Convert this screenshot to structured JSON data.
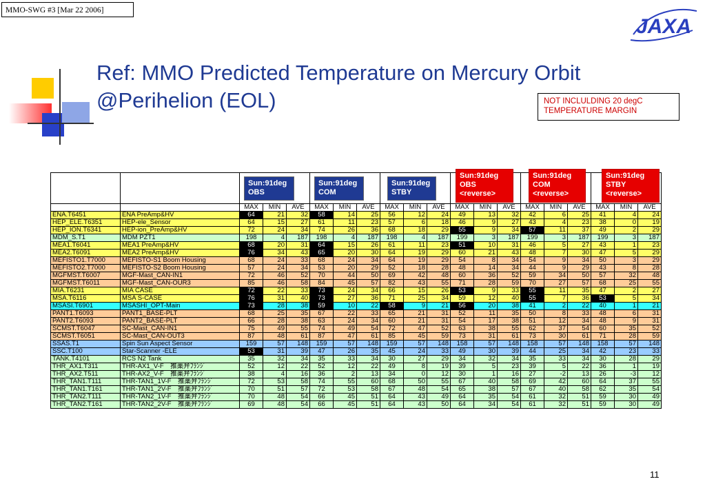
{
  "header": {
    "meeting": "MMO-SWG #3    [Mar 22 2006]"
  },
  "logo": {
    "text": "JAXA"
  },
  "title": {
    "line1": "Ref: MMO Predicted Temperature on Mercury Orbit",
    "line2": "@Perihelion (EOL)"
  },
  "note": {
    "line1": "NOT INCLULDING 20 degC",
    "line2": "TEMPERATURE MARGIN"
  },
  "labels": {
    "obs": [
      "Sun:91deg",
      "OBS"
    ],
    "com": [
      "Sun:91deg",
      "COM"
    ],
    "stby": [
      "Sun:91deg",
      "STBY"
    ],
    "obs_rev": [
      "Sun:91deg",
      "OBS",
      "<reverse>"
    ],
    "com_rev": [
      "Sun:91deg",
      "COM",
      "<reverse>"
    ],
    "stby_rev": [
      "Sun:91deg",
      "STBY",
      "<reverse>"
    ]
  },
  "subheaders": [
    "MAX",
    "MIN",
    "AVE",
    "MAX",
    "MIN",
    "AVE",
    "MAX",
    "MIN",
    "AVE",
    "MAX",
    "MIN",
    "AVE",
    "MAX",
    "MIN",
    "AVE",
    "MAX",
    "MIN",
    "AVE"
  ],
  "rows": [
    {
      "id": "ENA.T6451",
      "name": "ENA PreAmp&HV",
      "color": "y",
      "vals": [
        64,
        21,
        32,
        58,
        14,
        25,
        56,
        12,
        24,
        49,
        13,
        32,
        42,
        6,
        25,
        41,
        4,
        24
      ],
      "inv": [
        0,
        3
      ]
    },
    {
      "id": "HEP_ELE.T6351",
      "name": "HEP-ele_Sensor",
      "color": "y",
      "vals": [
        64,
        15,
        27,
        61,
        11,
        23,
        57,
        6,
        18,
        46,
        9,
        27,
        43,
        4,
        23,
        38,
        0,
        19
      ],
      "inv": []
    },
    {
      "id": "HEP_ION.T6341",
      "name": "HEP-ion_PreAmp&HV",
      "color": "y",
      "vals": [
        72,
        24,
        34,
        74,
        26,
        36,
        68,
        18,
        29,
        55,
        9,
        34,
        57,
        11,
        37,
        49,
        2,
        29
      ],
      "inv": [
        9,
        12
      ]
    },
    {
      "id": "MDM_S.T1",
      "name": "MDM PZT1",
      "color": "g",
      "vals": [
        198,
        4,
        187,
        198,
        4,
        187,
        198,
        4,
        187,
        199,
        3,
        187,
        199,
        3,
        187,
        199,
        3,
        187
      ],
      "inv": []
    },
    {
      "id": "MEA1.T6041",
      "name": "MEA1 PreAmp&HV",
      "color": "y",
      "vals": [
        68,
        20,
        31,
        64,
        15,
        26,
        61,
        11,
        23,
        51,
        10,
        31,
        46,
        5,
        27,
        43,
        1,
        23
      ],
      "inv": [
        0,
        3,
        9
      ]
    },
    {
      "id": "MEA2.T6091",
      "name": "MEA2 PreAmp&HV",
      "color": "y",
      "vals": [
        76,
        34,
        43,
        65,
        20,
        30,
        64,
        19,
        29,
        60,
        21,
        43,
        48,
        7,
        30,
        47,
        5,
        29
      ],
      "inv": [
        0,
        3
      ]
    },
    {
      "id": "MEFISTO1.T7000",
      "name": "MEFISTO-S1 Boom Housing",
      "color": "o",
      "vals": [
        68,
        24,
        33,
        68,
        24,
        34,
        64,
        19,
        29,
        54,
        8,
        34,
        54,
        9,
        34,
        50,
        3,
        29
      ],
      "inv": []
    },
    {
      "id": "MEFISTO2.T7000",
      "name": "MEFISTO-S2 Boom Housing",
      "color": "o",
      "vals": [
        57,
        24,
        34,
        53,
        20,
        29,
        52,
        18,
        28,
        48,
        14,
        34,
        44,
        9,
        29,
        43,
        8,
        28
      ],
      "inv": []
    },
    {
      "id": "MGFMST.T6007",
      "name": "MGF-Mast_CAN-IN1",
      "color": "o",
      "vals": [
        72,
        46,
        52,
        70,
        44,
        50,
        69,
        42,
        48,
        60,
        36,
        52,
        59,
        34,
        50,
        57,
        32,
        48
      ],
      "inv": []
    },
    {
      "id": "MGFMST.T6011",
      "name": "MGF-Mast_CAN-OUR3",
      "color": "o",
      "vals": [
        85,
        46,
        58,
        84,
        45,
        57,
        82,
        43,
        55,
        71,
        28,
        59,
        70,
        27,
        57,
        68,
        25,
        55
      ],
      "inv": []
    },
    {
      "id": "MIA.T6231",
      "name": "MIA CASE",
      "color": "y",
      "vals": [
        72,
        22,
        33,
        73,
        24,
        34,
        66,
        15,
        26,
        53,
        9,
        33,
        55,
        11,
        35,
        47,
        2,
        27
      ],
      "inv": [
        0,
        3,
        9,
        12
      ]
    },
    {
      "id": "MSA.T6116",
      "name": "MSA S-CASE",
      "color": "y",
      "vals": [
        76,
        31,
        40,
        73,
        27,
        36,
        71,
        25,
        34,
        59,
        12,
        40,
        55,
        7,
        36,
        53,
        5,
        34
      ],
      "inv": [
        0,
        3,
        12,
        15
      ]
    },
    {
      "id": "MSASI.T6901",
      "name": "MSASHI_OPT-Main",
      "color": "c",
      "vals": [
        73,
        28,
        38,
        59,
        10,
        22,
        58,
        9,
        21,
        56,
        20,
        38,
        41,
        2,
        22,
        40,
        1,
        21
      ],
      "inv": [
        0,
        3,
        6,
        9
      ]
    },
    {
      "id": "PANT1.T6093",
      "name": "PANT1_BASE-PLT",
      "color": "o",
      "vals": [
        68,
        25,
        35,
        67,
        22,
        33,
        65,
        21,
        31,
        52,
        11,
        35,
        50,
        8,
        33,
        48,
        6,
        31
      ],
      "inv": []
    },
    {
      "id": "PANT2.T6093",
      "name": "PANT2_BASE-PLT",
      "color": "o",
      "vals": [
        66,
        28,
        38,
        63,
        24,
        34,
        60,
        21,
        31,
        54,
        17,
        38,
        51,
        12,
        34,
        48,
        9,
        31
      ],
      "inv": []
    },
    {
      "id": "SCMST.T6047",
      "name": "SC-Mast_CAN-IN1",
      "color": "o",
      "vals": [
        75,
        49,
        55,
        74,
        49,
        54,
        72,
        47,
        52,
        63,
        38,
        55,
        62,
        37,
        54,
        60,
        35,
        52
      ],
      "inv": []
    },
    {
      "id": "SCMST.T6051",
      "name": "SC-Mast_CAN-OUT3",
      "color": "o",
      "vals": [
        87,
        48,
        61,
        87,
        47,
        61,
        85,
        45,
        59,
        73,
        31,
        61,
        73,
        30,
        61,
        71,
        28,
        59
      ],
      "inv": []
    },
    {
      "id": "SSAS.T1",
      "name": "Spin Sun Aspect Sensor",
      "color": "b",
      "vals": [
        159,
        57,
        148,
        159,
        57,
        148,
        159,
        57,
        148,
        158,
        57,
        148,
        158,
        57,
        148,
        158,
        57,
        148
      ],
      "inv": []
    },
    {
      "id": "SSC.T100",
      "name": "Star-Scanner -ELE",
      "color": "b",
      "vals": [
        53,
        31,
        39,
        47,
        26,
        35,
        45,
        24,
        33,
        49,
        30,
        39,
        44,
        25,
        34,
        42,
        23,
        33
      ],
      "inv": [
        0
      ]
    },
    {
      "id": "TANK.T4101",
      "name": "RCS N2 Tank",
      "color": "g",
      "vals": [
        35,
        32,
        34,
        35,
        33,
        34,
        30,
        27,
        29,
        34,
        32,
        34,
        35,
        33,
        34,
        30,
        28,
        29
      ],
      "inv": []
    },
    {
      "id": "THR_AX1.T311",
      "name": "THR-AX1_V-F　推薬弁ﾌﾗﾝｼﾞ",
      "color": "g",
      "vals": [
        52,
        12,
        22,
        52,
        12,
        22,
        49,
        8,
        19,
        39,
        5,
        23,
        39,
        5,
        22,
        36,
        1,
        19
      ],
      "inv": []
    },
    {
      "id": "THR_AX2.T511",
      "name": "THR-AX2_V-F　推薬弁ﾌﾗﾝｼﾞ",
      "color": "g",
      "vals": [
        38,
        4,
        16,
        36,
        2,
        13,
        34,
        0,
        12,
        30,
        1,
        16,
        27,
        -2,
        13,
        26,
        -3,
        12
      ],
      "inv": []
    },
    {
      "id": "THR_TAN1.T111",
      "name": "THR-TAN1_1V-F　推薬弁ﾌﾗﾝｼﾞ",
      "color": "g",
      "vals": [
        72,
        53,
        58,
        74,
        55,
        60,
        68,
        50,
        55,
        67,
        40,
        58,
        69,
        42,
        60,
        64,
        37,
        55
      ],
      "inv": []
    },
    {
      "id": "THR_TAN1.T161",
      "name": "THR-TAN1_2V-F　推薬弁ﾌﾗﾝｼﾞ",
      "color": "g",
      "vals": [
        70,
        51,
        57,
        72,
        53,
        58,
        67,
        48,
        54,
        65,
        38,
        57,
        67,
        40,
        58,
        62,
        35,
        54
      ],
      "inv": []
    },
    {
      "id": "THR_TAN2.T111",
      "name": "THR-TAN2_1V-F　推薬弁ﾌﾗﾝｼﾞ",
      "color": "g",
      "vals": [
        70,
        48,
        54,
        66,
        45,
        51,
        64,
        43,
        49,
        64,
        35,
        54,
        61,
        32,
        51,
        59,
        30,
        49
      ],
      "inv": []
    },
    {
      "id": "THR_TAN2.T161",
      "name": "THR-TAN2_2V-F　推薬弁ﾌﾗﾝｼﾞ",
      "color": "g",
      "vals": [
        69,
        48,
        54,
        66,
        45,
        51,
        64,
        43,
        50,
        64,
        34,
        54,
        61,
        32,
        51,
        59,
        30,
        49
      ],
      "inv": []
    }
  ],
  "page": {
    "number": "11"
  }
}
